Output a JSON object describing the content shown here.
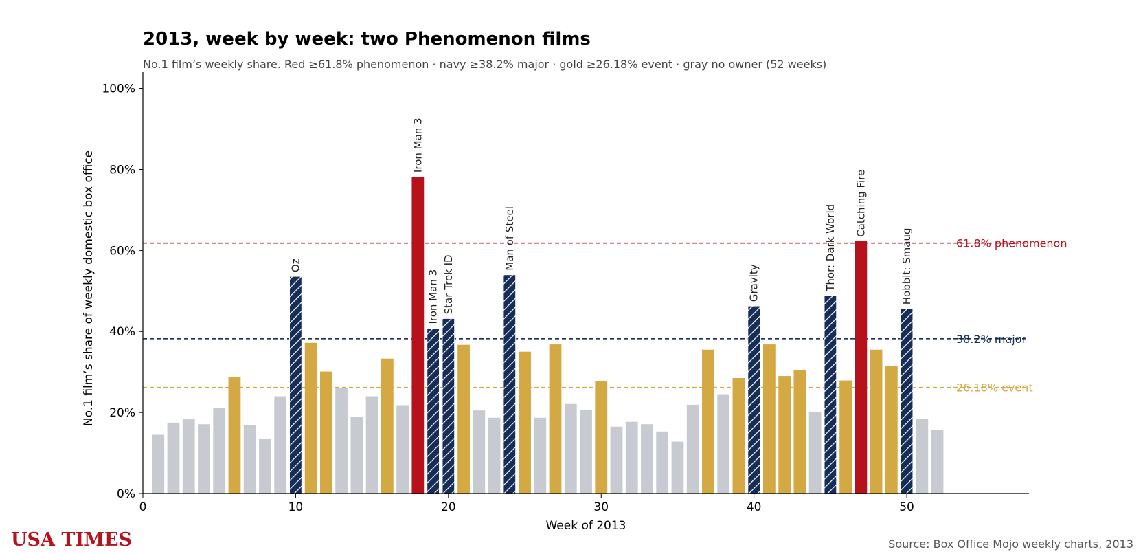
{
  "title": "2013, week by week: two Phenomenon films",
  "subtitle": "No.1 film’s weekly share. Red ≥61.8% phenomenon · navy ≥38.2% major · gold ≥26.18% event · gray no owner (52 weeks)",
  "brand": "USA TIMES",
  "source": "Source: Box Office Mojo weekly charts, 2013",
  "colors": {
    "phenomenon": "#b5121b",
    "major": "#152d57",
    "event": "#d4a944",
    "none": "#c8cad1"
  },
  "chart_data": {
    "type": "bar",
    "xlabel": "Week of 2013",
    "ylabel": "No.1 film’s share of weekly domestic box office",
    "xlim": [
      0,
      58
    ],
    "ylim": [
      0,
      104
    ],
    "xticks": [
      0,
      10,
      20,
      30,
      40,
      50
    ],
    "yticks": [
      0,
      20,
      40,
      60,
      80,
      100
    ],
    "ytick_labels": [
      "0%",
      "20%",
      "40%",
      "60%",
      "80%",
      "100%"
    ],
    "thresholds": [
      {
        "value": 61.8,
        "label": "61.8% phenomenon",
        "tier": "phenomenon"
      },
      {
        "value": 38.2,
        "label": "38.2% major",
        "tier": "major"
      },
      {
        "value": 26.18,
        "label": "26.18% event",
        "tier": "event"
      }
    ],
    "bars": [
      {
        "week": 1,
        "value": 14.5,
        "tier": "none",
        "label": ""
      },
      {
        "week": 2,
        "value": 17.5,
        "tier": "none",
        "label": ""
      },
      {
        "week": 3,
        "value": 18.3,
        "tier": "none",
        "label": ""
      },
      {
        "week": 4,
        "value": 17.1,
        "tier": "none",
        "label": ""
      },
      {
        "week": 5,
        "value": 21.1,
        "tier": "none",
        "label": ""
      },
      {
        "week": 6,
        "value": 28.7,
        "tier": "event",
        "label": ""
      },
      {
        "week": 7,
        "value": 16.8,
        "tier": "none",
        "label": ""
      },
      {
        "week": 8,
        "value": 13.5,
        "tier": "none",
        "label": ""
      },
      {
        "week": 9,
        "value": 24.0,
        "tier": "none",
        "label": ""
      },
      {
        "week": 10,
        "value": 53.6,
        "tier": "major",
        "label": "Oz"
      },
      {
        "week": 11,
        "value": 37.2,
        "tier": "event",
        "label": ""
      },
      {
        "week": 12,
        "value": 30.1,
        "tier": "event",
        "label": ""
      },
      {
        "week": 13,
        "value": 26.0,
        "tier": "none",
        "label": ""
      },
      {
        "week": 14,
        "value": 18.9,
        "tier": "none",
        "label": ""
      },
      {
        "week": 15,
        "value": 24.0,
        "tier": "none",
        "label": ""
      },
      {
        "week": 16,
        "value": 33.3,
        "tier": "event",
        "label": ""
      },
      {
        "week": 17,
        "value": 21.8,
        "tier": "none",
        "label": ""
      },
      {
        "week": 18,
        "value": 78.2,
        "tier": "phenomenon",
        "label": "Iron Man 3"
      },
      {
        "week": 19,
        "value": 40.8,
        "tier": "major",
        "label": "Iron Man 3"
      },
      {
        "week": 20,
        "value": 43.2,
        "tier": "major",
        "label": "Star Trek ID"
      },
      {
        "week": 21,
        "value": 36.7,
        "tier": "event",
        "label": ""
      },
      {
        "week": 22,
        "value": 20.5,
        "tier": "none",
        "label": ""
      },
      {
        "week": 23,
        "value": 18.7,
        "tier": "none",
        "label": ""
      },
      {
        "week": 24,
        "value": 54.0,
        "tier": "major",
        "label": "Man of Steel"
      },
      {
        "week": 25,
        "value": 35.0,
        "tier": "event",
        "label": ""
      },
      {
        "week": 26,
        "value": 18.7,
        "tier": "none",
        "label": ""
      },
      {
        "week": 27,
        "value": 36.8,
        "tier": "event",
        "label": ""
      },
      {
        "week": 28,
        "value": 22.1,
        "tier": "none",
        "label": ""
      },
      {
        "week": 29,
        "value": 20.7,
        "tier": "none",
        "label": ""
      },
      {
        "week": 30,
        "value": 27.7,
        "tier": "event",
        "label": ""
      },
      {
        "week": 31,
        "value": 16.5,
        "tier": "none",
        "label": ""
      },
      {
        "week": 32,
        "value": 17.7,
        "tier": "none",
        "label": ""
      },
      {
        "week": 33,
        "value": 17.1,
        "tier": "none",
        "label": ""
      },
      {
        "week": 34,
        "value": 15.3,
        "tier": "none",
        "label": ""
      },
      {
        "week": 35,
        "value": 12.8,
        "tier": "none",
        "label": ""
      },
      {
        "week": 36,
        "value": 21.9,
        "tier": "none",
        "label": ""
      },
      {
        "week": 37,
        "value": 35.5,
        "tier": "event",
        "label": ""
      },
      {
        "week": 38,
        "value": 24.5,
        "tier": "none",
        "label": ""
      },
      {
        "week": 39,
        "value": 28.5,
        "tier": "event",
        "label": ""
      },
      {
        "week": 40,
        "value": 46.3,
        "tier": "major",
        "label": "Gravity"
      },
      {
        "week": 41,
        "value": 36.8,
        "tier": "event",
        "label": ""
      },
      {
        "week": 42,
        "value": 29.0,
        "tier": "event",
        "label": ""
      },
      {
        "week": 43,
        "value": 30.4,
        "tier": "event",
        "label": ""
      },
      {
        "week": 44,
        "value": 20.2,
        "tier": "none",
        "label": ""
      },
      {
        "week": 45,
        "value": 48.9,
        "tier": "major",
        "label": "Thor: Dark World"
      },
      {
        "week": 46,
        "value": 27.9,
        "tier": "event",
        "label": ""
      },
      {
        "week": 47,
        "value": 62.3,
        "tier": "phenomenon",
        "label": "Catching Fire"
      },
      {
        "week": 48,
        "value": 35.5,
        "tier": "event",
        "label": ""
      },
      {
        "week": 49,
        "value": 31.5,
        "tier": "event",
        "label": ""
      },
      {
        "week": 50,
        "value": 45.6,
        "tier": "major",
        "label": "Hobbit: Smaug"
      },
      {
        "week": 51,
        "value": 18.5,
        "tier": "none",
        "label": ""
      },
      {
        "week": 52,
        "value": 15.7,
        "tier": "none",
        "label": ""
      }
    ]
  }
}
